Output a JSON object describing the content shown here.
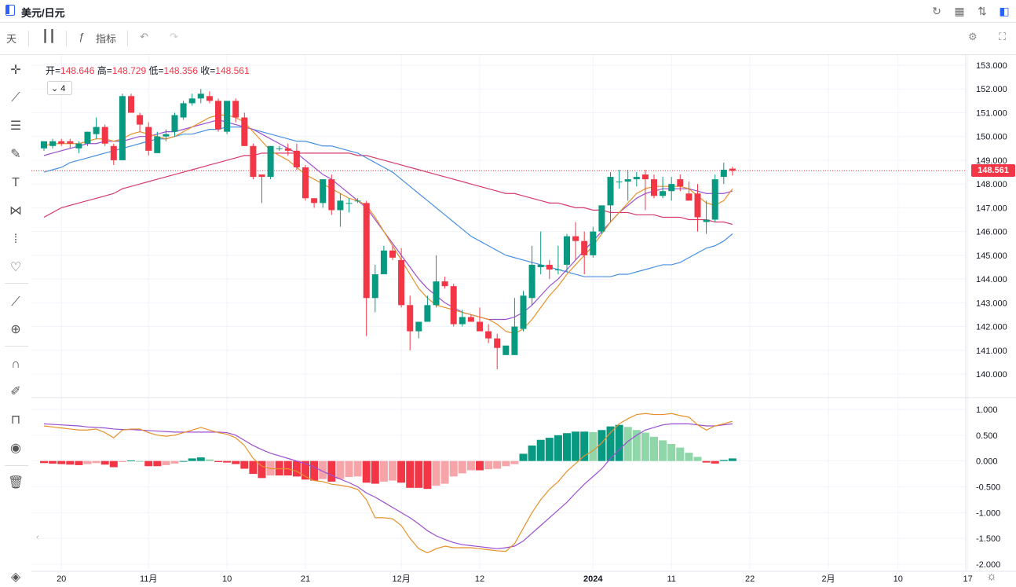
{
  "header": {
    "symbol": "美元/日元"
  },
  "toolbar": {
    "interval": "天",
    "indicators_label": "指标"
  },
  "ohlc": {
    "open_label": "开=",
    "open": "148.646",
    "high_label": "高=",
    "high": "148.729",
    "low_label": "低=",
    "low": "148.356",
    "close_label": "收=",
    "close": "148.561"
  },
  "indicator_toggle": {
    "count": "4"
  },
  "last_price_label": "148.561",
  "colors": {
    "up": "#089981",
    "down": "#f23645",
    "ma_fast": "#e8912a",
    "ma_mid": "#9c4ed1",
    "ma_slow_blue": "#4a90e2",
    "ma_slow_red": "#d63a6a",
    "macd_up_light": "#8fd6a9",
    "macd_down_light": "#f7a4a9"
  },
  "icons": {
    "top_right": [
      "refresh-icon",
      "layout-icon",
      "compare-icon",
      "panel-icon"
    ],
    "left_tools": [
      "crosshair-icon",
      "trend-line-icon",
      "horizontal-lines-icon",
      "brush-icon",
      "text-icon",
      "pattern-icon",
      "forecast-icon",
      "favorite-icon",
      "ruler-icon",
      "zoom-in-icon",
      "magnet-icon",
      "lock-draw-icon",
      "lock-icon",
      "eye-icon",
      "trash-icon"
    ]
  },
  "chart_data": {
    "type": "candlestick",
    "price_axis": {
      "ticks": [
        "153.000",
        "152.000",
        "151.000",
        "150.000",
        "149.000",
        "148.000",
        "147.000",
        "146.000",
        "145.000",
        "144.000",
        "143.000",
        "142.000",
        "141.000",
        "140.000"
      ],
      "range": [
        139.3,
        153.2
      ]
    },
    "macd_axis": {
      "ticks": [
        "1.000",
        "0.500",
        "0.000",
        "-0.500",
        "-1.000",
        "-1.500",
        "-2.000"
      ],
      "range": [
        -2.0,
        1.05
      ]
    },
    "time_axis": [
      "20",
      "11月",
      "10",
      "21",
      "12月",
      "12",
      "2024",
      "11",
      "22",
      "2月",
      "10",
      "17"
    ],
    "time_axis_index": [
      2,
      12,
      21,
      30,
      41,
      50,
      63,
      72,
      81,
      90,
      98,
      106
    ],
    "candles": [
      [
        149.5,
        149.7,
        149.4,
        149.8
      ],
      [
        149.6,
        149.9,
        149.5,
        149.8
      ],
      [
        149.8,
        149.9,
        149.6,
        149.7
      ],
      [
        149.8,
        149.9,
        149.5,
        149.7
      ],
      [
        149.5,
        149.8,
        149.3,
        149.7
      ],
      [
        149.7,
        150.2,
        149.6,
        150.2
      ],
      [
        150.1,
        150.8,
        149.9,
        150.4
      ],
      [
        150.4,
        150.5,
        149.6,
        149.7
      ],
      [
        149.6,
        149.7,
        148.8,
        149.0
      ],
      [
        149.0,
        151.8,
        149.0,
        151.7
      ],
      [
        151.7,
        151.8,
        151.0,
        151.0
      ],
      [
        150.9,
        151.0,
        150.2,
        150.5
      ],
      [
        150.4,
        150.6,
        149.2,
        149.4
      ],
      [
        149.3,
        150.2,
        149.3,
        150.0
      ],
      [
        150.0,
        150.3,
        149.8,
        150.1
      ],
      [
        150.2,
        151.0,
        150.0,
        150.9
      ],
      [
        150.8,
        151.5,
        150.7,
        151.4
      ],
      [
        151.4,
        151.8,
        151.3,
        151.6
      ],
      [
        151.6,
        152.0,
        151.4,
        151.8
      ],
      [
        151.7,
        151.9,
        151.4,
        151.5
      ],
      [
        151.5,
        151.6,
        150.2,
        150.3
      ],
      [
        150.2,
        151.5,
        150.1,
        151.5
      ],
      [
        151.5,
        151.6,
        150.6,
        150.8
      ],
      [
        150.8,
        151.0,
        149.6,
        149.6
      ],
      [
        149.6,
        149.7,
        148.2,
        148.3
      ],
      [
        148.4,
        148.4,
        147.2,
        148.3
      ],
      [
        148.3,
        149.6,
        148.2,
        149.6
      ],
      [
        149.5,
        149.6,
        149.4,
        149.5
      ],
      [
        149.5,
        149.7,
        149.2,
        149.4
      ],
      [
        149.4,
        149.7,
        148.6,
        148.7
      ],
      [
        148.7,
        148.8,
        147.3,
        147.4
      ],
      [
        147.4,
        147.4,
        147.0,
        147.2
      ],
      [
        147.2,
        148.2,
        147.0,
        148.2
      ],
      [
        148.2,
        148.4,
        146.7,
        146.9
      ],
      [
        146.9,
        147.6,
        146.2,
        147.3
      ],
      [
        147.2,
        147.4,
        146.8,
        147.2
      ],
      [
        147.3,
        147.4,
        147.2,
        147.3
      ],
      [
        147.2,
        147.3,
        141.6,
        143.2
      ],
      [
        143.2,
        144.6,
        142.6,
        144.2
      ],
      [
        144.2,
        145.4,
        144.2,
        145.2
      ],
      [
        145.2,
        145.4,
        144.8,
        144.9
      ],
      [
        144.8,
        145.3,
        142.8,
        142.9
      ],
      [
        142.9,
        143.3,
        141.0,
        141.8
      ],
      [
        141.8,
        142.2,
        141.5,
        142.2
      ],
      [
        142.2,
        143.3,
        142.2,
        142.9
      ],
      [
        142.9,
        145.0,
        142.8,
        143.9
      ],
      [
        143.9,
        144.1,
        143.6,
        143.7
      ],
      [
        143.7,
        143.8,
        142.0,
        142.1
      ],
      [
        142.1,
        142.7,
        142.0,
        142.4
      ],
      [
        142.4,
        142.5,
        142.2,
        142.2
      ],
      [
        142.2,
        142.8,
        141.9,
        141.8
      ],
      [
        141.8,
        142.1,
        141.3,
        141.5
      ],
      [
        141.5,
        141.7,
        140.2,
        141.1
      ],
      [
        140.8,
        141.1,
        140.8,
        141.2
      ],
      [
        140.8,
        143.2,
        140.8,
        142.0
      ],
      [
        141.9,
        143.5,
        141.8,
        143.3
      ],
      [
        143.2,
        145.4,
        142.9,
        144.6
      ],
      [
        144.5,
        146.0,
        144.2,
        144.6
      ],
      [
        144.6,
        144.8,
        144.0,
        144.4
      ],
      [
        144.4,
        145.4,
        144.2,
        144.4
      ],
      [
        144.6,
        145.9,
        144.3,
        145.8
      ],
      [
        145.8,
        146.4,
        144.8,
        145.6
      ],
      [
        145.6,
        146.0,
        144.2,
        145.0
      ],
      [
        145.0,
        146.2,
        144.9,
        146.0
      ],
      [
        146.0,
        147.1,
        145.9,
        147.1
      ],
      [
        147.1,
        148.5,
        146.4,
        148.3
      ],
      [
        148.1,
        148.6,
        147.8,
        148.1
      ],
      [
        148.1,
        148.6,
        147.3,
        148.2
      ],
      [
        148.2,
        148.5,
        147.9,
        148.3
      ],
      [
        148.4,
        148.6,
        146.9,
        148.2
      ],
      [
        148.2,
        148.4,
        147.4,
        147.5
      ],
      [
        147.5,
        148.3,
        147.4,
        147.7
      ],
      [
        147.7,
        148.3,
        147.3,
        148.0
      ],
      [
        148.2,
        148.4,
        147.7,
        147.9
      ],
      [
        147.6,
        148.1,
        147.4,
        147.3
      ],
      [
        147.6,
        148.0,
        146.0,
        146.6
      ],
      [
        146.4,
        147.3,
        145.9,
        146.5
      ],
      [
        146.5,
        148.4,
        146.4,
        148.2
      ],
      [
        148.3,
        148.9,
        148.0,
        148.6
      ],
      [
        148.646,
        148.729,
        148.356,
        148.561
      ]
    ],
    "ma_fast": [
      149.6,
      149.7,
      149.7,
      149.7,
      149.7,
      149.8,
      149.9,
      149.9,
      149.8,
      149.9,
      150.1,
      150.2,
      150.1,
      150.0,
      149.9,
      150.0,
      150.2,
      150.4,
      150.6,
      150.8,
      150.9,
      150.9,
      150.8,
      150.6,
      150.2,
      149.8,
      149.4,
      149.2,
      149.0,
      148.7,
      148.4,
      148.2,
      148.0,
      147.8,
      147.6,
      147.4,
      147.3,
      147.1,
      146.6,
      146.0,
      145.4,
      144.8,
      144.2,
      143.6,
      143.2,
      142.9,
      142.8,
      142.7,
      142.6,
      142.5,
      142.4,
      142.3,
      142.1,
      141.8,
      141.7,
      141.9,
      142.3,
      142.8,
      143.3,
      143.7,
      144.2,
      144.6,
      145.0,
      145.4,
      145.9,
      146.4,
      146.8,
      147.2,
      147.6,
      147.8,
      147.9,
      147.9,
      147.9,
      147.9,
      147.8,
      147.5,
      147.2,
      147.1,
      147.3,
      147.8
    ],
    "ma_mid": [
      149.2,
      149.3,
      149.4,
      149.5,
      149.6,
      149.7,
      149.7,
      149.8,
      149.8,
      149.8,
      149.9,
      150.0,
      150.0,
      150.1,
      150.2,
      150.2,
      150.3,
      150.4,
      150.5,
      150.6,
      150.7,
      150.6,
      150.5,
      150.4,
      150.3,
      150.1,
      149.9,
      149.7,
      149.5,
      149.3,
      149.0,
      148.7,
      148.4,
      148.2,
      147.9,
      147.6,
      147.3,
      147.0,
      146.5,
      146.0,
      145.5,
      145.0,
      144.5,
      144.0,
      143.6,
      143.3,
      143.0,
      142.8,
      142.6,
      142.5,
      142.4,
      142.3,
      142.3,
      142.3,
      142.4,
      142.6,
      142.9,
      143.3,
      143.7,
      144.0,
      144.4,
      144.8,
      145.2,
      145.6,
      146.0,
      146.4,
      146.8,
      147.1,
      147.4,
      147.6,
      147.7,
      147.8,
      147.8,
      147.8,
      147.8,
      147.7,
      147.6,
      147.6,
      147.6,
      147.7
    ],
    "ma_slow_blue": [
      148.5,
      148.6,
      148.7,
      148.9,
      149.0,
      149.1,
      149.2,
      149.3,
      149.4,
      149.5,
      149.6,
      149.7,
      149.8,
      149.9,
      149.9,
      150.0,
      150.1,
      150.1,
      150.2,
      150.3,
      150.3,
      150.4,
      150.4,
      150.4,
      150.3,
      150.2,
      150.1,
      150.0,
      149.9,
      149.8,
      149.8,
      149.7,
      149.6,
      149.6,
      149.5,
      149.4,
      149.3,
      149.1,
      148.9,
      148.7,
      148.5,
      148.2,
      147.9,
      147.6,
      147.3,
      147.0,
      146.7,
      146.4,
      146.1,
      145.8,
      145.6,
      145.4,
      145.2,
      145.0,
      144.9,
      144.8,
      144.7,
      144.6,
      144.5,
      144.4,
      144.3,
      144.2,
      144.1,
      144.1,
      144.1,
      144.1,
      144.2,
      144.2,
      144.3,
      144.4,
      144.5,
      144.6,
      144.6,
      144.7,
      144.9,
      145.1,
      145.3,
      145.4,
      145.6,
      145.9
    ],
    "ma_slow_red": [
      146.6,
      146.8,
      147.0,
      147.1,
      147.2,
      147.3,
      147.4,
      147.5,
      147.6,
      147.8,
      147.9,
      148.0,
      148.1,
      148.2,
      148.3,
      148.4,
      148.5,
      148.6,
      148.7,
      148.8,
      148.9,
      149.0,
      149.1,
      149.2,
      149.2,
      149.3,
      149.3,
      149.3,
      149.3,
      149.3,
      149.3,
      149.3,
      149.3,
      149.3,
      149.3,
      149.3,
      149.2,
      149.2,
      149.1,
      149.0,
      148.9,
      148.8,
      148.7,
      148.6,
      148.5,
      148.4,
      148.3,
      148.2,
      148.1,
      148.0,
      147.9,
      147.8,
      147.7,
      147.6,
      147.6,
      147.5,
      147.4,
      147.3,
      147.2,
      147.2,
      147.1,
      147.0,
      147.0,
      146.9,
      146.9,
      146.8,
      146.8,
      146.8,
      146.7,
      146.7,
      146.7,
      146.6,
      146.6,
      146.6,
      146.5,
      146.5,
      146.5,
      146.4,
      146.4,
      146.3
    ],
    "macd_hist": [
      -0.04,
      -0.05,
      -0.06,
      -0.07,
      -0.08,
      -0.06,
      -0.04,
      -0.07,
      -0.12,
      -0.02,
      0.01,
      0.0,
      -0.1,
      -0.1,
      -0.08,
      -0.05,
      0.0,
      0.05,
      0.07,
      0.03,
      -0.02,
      -0.03,
      -0.06,
      -0.15,
      -0.25,
      -0.33,
      -0.28,
      -0.28,
      -0.28,
      -0.3,
      -0.36,
      -0.38,
      -0.35,
      -0.4,
      -0.35,
      -0.31,
      -0.3,
      -0.42,
      -0.44,
      -0.4,
      -0.38,
      -0.42,
      -0.52,
      -0.52,
      -0.54,
      -0.48,
      -0.44,
      -0.3,
      -0.24,
      -0.18,
      -0.18,
      -0.16,
      -0.15,
      -0.1,
      -0.06,
      0.14,
      0.3,
      0.41,
      0.45,
      0.5,
      0.54,
      0.57,
      0.57,
      0.56,
      0.6,
      0.67,
      0.7,
      0.66,
      0.6,
      0.55,
      0.47,
      0.4,
      0.33,
      0.26,
      0.16,
      0.08,
      -0.03,
      -0.05,
      0.02,
      0.05
    ],
    "macd_dif": [
      0.68,
      0.66,
      0.64,
      0.62,
      0.6,
      0.6,
      0.62,
      0.55,
      0.45,
      0.6,
      0.62,
      0.62,
      0.55,
      0.5,
      0.48,
      0.5,
      0.55,
      0.6,
      0.65,
      0.6,
      0.55,
      0.52,
      0.45,
      0.3,
      0.05,
      -0.1,
      -0.15,
      -0.15,
      -0.15,
      -0.2,
      -0.3,
      -0.38,
      -0.4,
      -0.45,
      -0.47,
      -0.5,
      -0.55,
      -0.75,
      -1.1,
      -1.1,
      -1.12,
      -1.25,
      -1.5,
      -1.7,
      -1.78,
      -1.7,
      -1.65,
      -1.68,
      -1.68,
      -1.68,
      -1.7,
      -1.72,
      -1.74,
      -1.75,
      -1.6,
      -1.3,
      -1.0,
      -0.75,
      -0.55,
      -0.4,
      -0.2,
      -0.05,
      0.1,
      0.2,
      0.35,
      0.55,
      0.72,
      0.82,
      0.9,
      0.92,
      0.9,
      0.9,
      0.92,
      0.88,
      0.85,
      0.7,
      0.6,
      0.68,
      0.72,
      0.77
    ],
    "macd_dea": [
      0.72,
      0.71,
      0.7,
      0.69,
      0.68,
      0.66,
      0.65,
      0.64,
      0.62,
      0.61,
      0.61,
      0.6,
      0.59,
      0.58,
      0.57,
      0.56,
      0.56,
      0.56,
      0.56,
      0.56,
      0.56,
      0.55,
      0.5,
      0.4,
      0.3,
      0.22,
      0.15,
      0.1,
      0.05,
      0.0,
      -0.05,
      -0.12,
      -0.2,
      -0.28,
      -0.35,
      -0.42,
      -0.5,
      -0.62,
      -0.7,
      -0.8,
      -0.9,
      -1.0,
      -1.1,
      -1.22,
      -1.35,
      -1.45,
      -1.52,
      -1.58,
      -1.62,
      -1.64,
      -1.66,
      -1.68,
      -1.7,
      -1.68,
      -1.65,
      -1.55,
      -1.4,
      -1.25,
      -1.1,
      -0.95,
      -0.8,
      -0.62,
      -0.45,
      -0.3,
      -0.15,
      0.05,
      0.22,
      0.38,
      0.5,
      0.6,
      0.65,
      0.7,
      0.72,
      0.72,
      0.72,
      0.7,
      0.68,
      0.68,
      0.7,
      0.72
    ]
  }
}
